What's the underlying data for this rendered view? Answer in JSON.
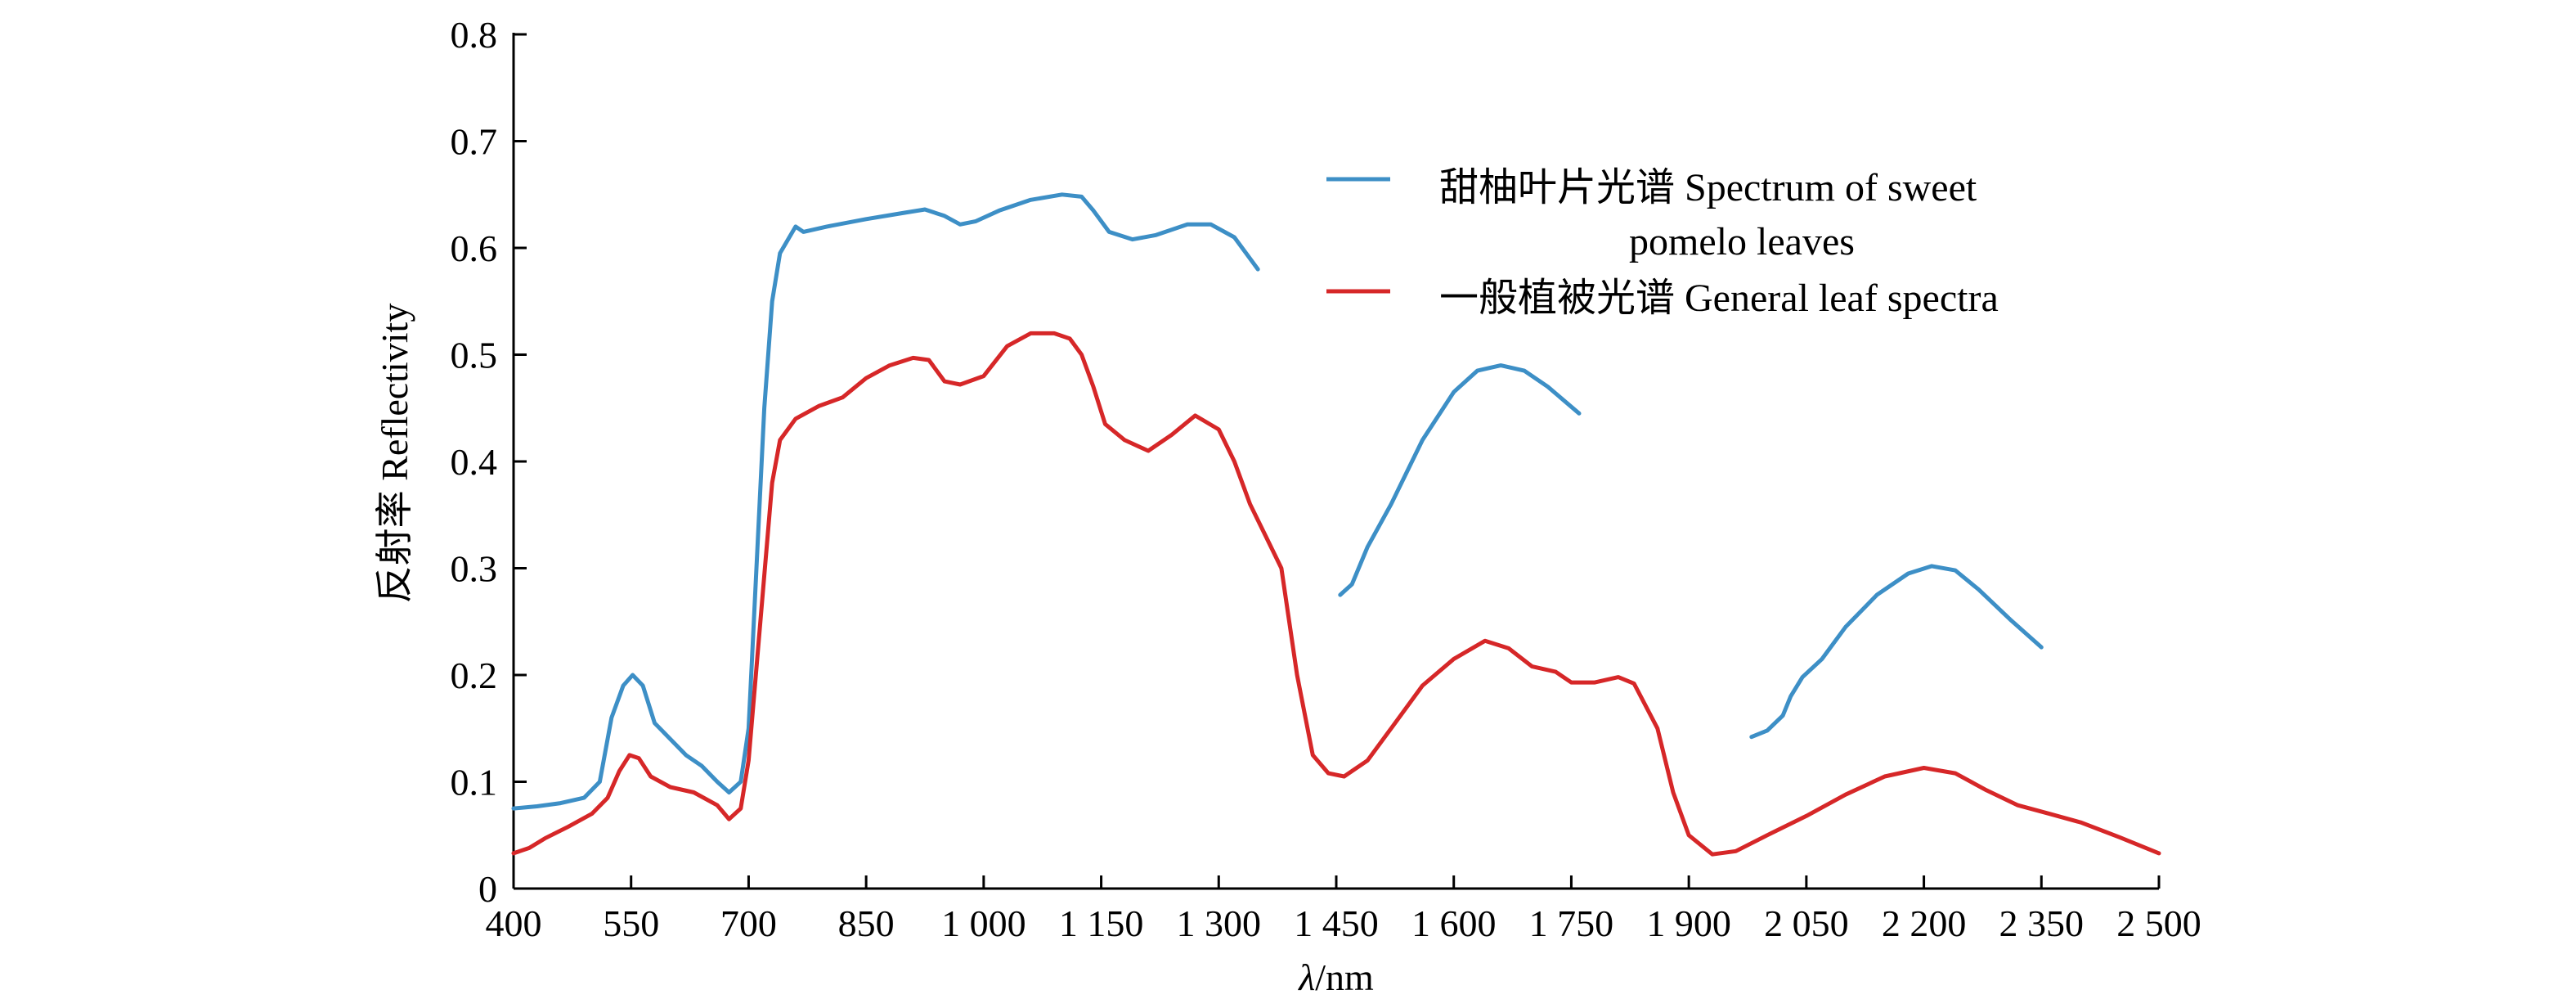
{
  "chart_data": {
    "type": "line",
    "xlabel_italic": "λ",
    "xlabel_unit": "/nm",
    "ylabel": "反射率 Reflectivity",
    "xlim": [
      400,
      2500
    ],
    "ylim": [
      0,
      0.8
    ],
    "x_ticks": [
      400,
      550,
      700,
      850,
      1000,
      1150,
      1300,
      1450,
      1600,
      1750,
      1900,
      2050,
      2200,
      2350,
      2500
    ],
    "x_tick_labels": [
      "400",
      "550",
      "700",
      "850",
      "1 000",
      "1 150",
      "1 300",
      "1 450",
      "1 600",
      "1 750",
      "1 900",
      "2 050",
      "2 200",
      "2 350",
      "2 500"
    ],
    "y_ticks": [
      0,
      0.1,
      0.2,
      0.3,
      0.4,
      0.5,
      0.6,
      0.7,
      0.8
    ],
    "y_tick_labels": [
      "0",
      "0.1",
      "0.2",
      "0.3",
      "0.4",
      "0.5",
      "0.6",
      "0.7",
      "0.8"
    ],
    "grid": false,
    "legend_position": "top-right",
    "series": [
      {
        "name": "甜柚叶片光谱 Spectrum of sweet pomelo leaves",
        "legend_line1": "甜柚叶片光谱 Spectrum of sweet",
        "legend_line2": "pomelo leaves",
        "color": "#3d8fc6",
        "segments": [
          [
            [
              400,
              0.075
            ],
            [
              430,
              0.077
            ],
            [
              460,
              0.08
            ],
            [
              490,
              0.085
            ],
            [
              510,
              0.1
            ],
            [
              525,
              0.16
            ],
            [
              540,
              0.19
            ],
            [
              552,
              0.2
            ],
            [
              565,
              0.19
            ],
            [
              580,
              0.155
            ],
            [
              600,
              0.14
            ],
            [
              620,
              0.125
            ],
            [
              640,
              0.115
            ],
            [
              660,
              0.1
            ],
            [
              675,
              0.09
            ],
            [
              690,
              0.1
            ],
            [
              700,
              0.15
            ],
            [
              710,
              0.3
            ],
            [
              720,
              0.45
            ],
            [
              730,
              0.55
            ],
            [
              740,
              0.595
            ],
            [
              752,
              0.61
            ],
            [
              760,
              0.62
            ],
            [
              770,
              0.615
            ],
            [
              800,
              0.62
            ],
            [
              850,
              0.627
            ],
            [
              900,
              0.633
            ],
            [
              925,
              0.636
            ],
            [
              950,
              0.63
            ],
            [
              970,
              0.622
            ],
            [
              990,
              0.625
            ],
            [
              1020,
              0.635
            ],
            [
              1060,
              0.645
            ],
            [
              1100,
              0.65
            ],
            [
              1125,
              0.648
            ],
            [
              1140,
              0.635
            ],
            [
              1160,
              0.615
            ],
            [
              1190,
              0.608
            ],
            [
              1220,
              0.612
            ],
            [
              1260,
              0.622
            ],
            [
              1290,
              0.622
            ],
            [
              1320,
              0.61
            ],
            [
              1350,
              0.58
            ]
          ],
          [
            [
              1455,
              0.275
            ],
            [
              1470,
              0.285
            ],
            [
              1490,
              0.32
            ],
            [
              1520,
              0.36
            ],
            [
              1560,
              0.42
            ],
            [
              1600,
              0.465
            ],
            [
              1630,
              0.485
            ],
            [
              1660,
              0.49
            ],
            [
              1690,
              0.485
            ],
            [
              1720,
              0.47
            ],
            [
              1760,
              0.445
            ]
          ],
          [
            [
              1980,
              0.142
            ],
            [
              2000,
              0.148
            ],
            [
              2020,
              0.162
            ],
            [
              2030,
              0.18
            ],
            [
              2045,
              0.198
            ],
            [
              2070,
              0.215
            ],
            [
              2100,
              0.245
            ],
            [
              2140,
              0.275
            ],
            [
              2180,
              0.295
            ],
            [
              2210,
              0.302
            ],
            [
              2240,
              0.298
            ],
            [
              2270,
              0.28
            ],
            [
              2310,
              0.252
            ],
            [
              2350,
              0.226
            ]
          ]
        ]
      },
      {
        "name": "一般植被光谱 General leaf spectra",
        "legend_line1": "一般植被光谱 General leaf spectra",
        "color": "#d62728",
        "segments": [
          [
            [
              400,
              0.033
            ],
            [
              420,
              0.038
            ],
            [
              440,
              0.047
            ],
            [
              470,
              0.058
            ],
            [
              500,
              0.07
            ],
            [
              520,
              0.085
            ],
            [
              535,
              0.11
            ],
            [
              548,
              0.125
            ],
            [
              560,
              0.122
            ],
            [
              575,
              0.105
            ],
            [
              600,
              0.095
            ],
            [
              630,
              0.09
            ],
            [
              660,
              0.078
            ],
            [
              675,
              0.065
            ],
            [
              690,
              0.075
            ],
            [
              700,
              0.12
            ],
            [
              715,
              0.25
            ],
            [
              730,
              0.38
            ],
            [
              740,
              0.42
            ],
            [
              760,
              0.44
            ],
            [
              790,
              0.452
            ],
            [
              820,
              0.46
            ],
            [
              850,
              0.478
            ],
            [
              880,
              0.49
            ],
            [
              910,
              0.497
            ],
            [
              930,
              0.495
            ],
            [
              950,
              0.475
            ],
            [
              970,
              0.472
            ],
            [
              1000,
              0.48
            ],
            [
              1030,
              0.508
            ],
            [
              1060,
              0.52
            ],
            [
              1090,
              0.52
            ],
            [
              1110,
              0.515
            ],
            [
              1125,
              0.5
            ],
            [
              1140,
              0.47
            ],
            [
              1155,
              0.435
            ],
            [
              1180,
              0.42
            ],
            [
              1210,
              0.41
            ],
            [
              1240,
              0.425
            ],
            [
              1270,
              0.443
            ],
            [
              1300,
              0.43
            ],
            [
              1320,
              0.4
            ],
            [
              1340,
              0.36
            ],
            [
              1360,
              0.33
            ],
            [
              1380,
              0.3
            ],
            [
              1400,
              0.2
            ],
            [
              1420,
              0.125
            ],
            [
              1440,
              0.108
            ],
            [
              1460,
              0.105
            ],
            [
              1490,
              0.12
            ],
            [
              1520,
              0.15
            ],
            [
              1560,
              0.19
            ],
            [
              1600,
              0.215
            ],
            [
              1640,
              0.232
            ],
            [
              1670,
              0.225
            ],
            [
              1700,
              0.208
            ],
            [
              1730,
              0.203
            ],
            [
              1750,
              0.193
            ],
            [
              1780,
              0.193
            ],
            [
              1810,
              0.198
            ],
            [
              1830,
              0.192
            ],
            [
              1860,
              0.15
            ],
            [
              1880,
              0.09
            ],
            [
              1900,
              0.05
            ],
            [
              1930,
              0.032
            ],
            [
              1960,
              0.035
            ],
            [
              2000,
              0.05
            ],
            [
              2050,
              0.068
            ],
            [
              2100,
              0.088
            ],
            [
              2150,
              0.105
            ],
            [
              2200,
              0.113
            ],
            [
              2240,
              0.108
            ],
            [
              2280,
              0.092
            ],
            [
              2320,
              0.078
            ],
            [
              2360,
              0.07
            ],
            [
              2400,
              0.062
            ],
            [
              2450,
              0.048
            ],
            [
              2500,
              0.033
            ]
          ]
        ]
      }
    ]
  }
}
